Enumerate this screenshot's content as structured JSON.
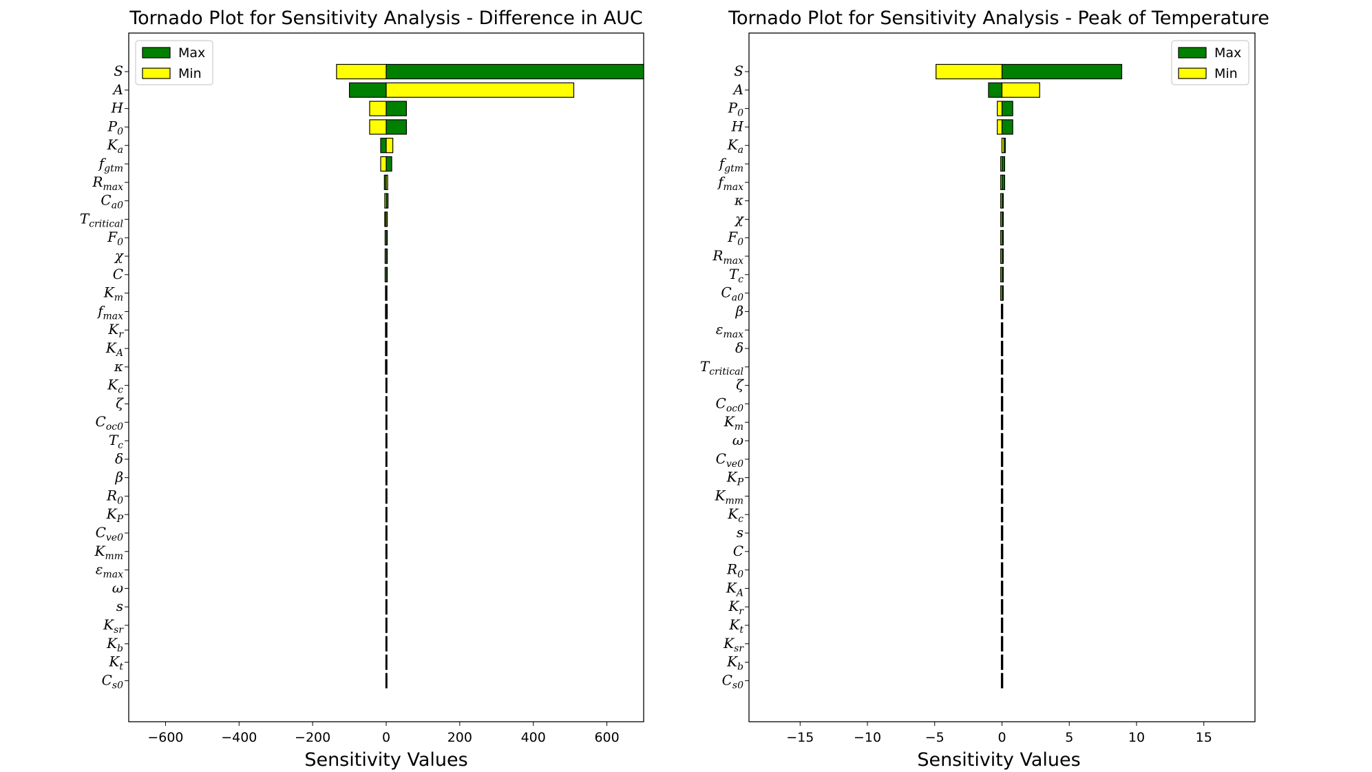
{
  "colors": {
    "max": "#008000",
    "min": "#ffff00",
    "edge": "#000000"
  },
  "chart_data": [
    {
      "type": "bar",
      "orientation": "horizontal",
      "title": "Tornado Plot for Sensitivity Analysis - Difference in AUC",
      "xlabel": "Sensitivity Values",
      "ylabel": "",
      "xlim": [
        -700,
        700
      ],
      "xticks": [
        -600,
        -400,
        -200,
        0,
        200,
        400,
        600
      ],
      "xtick_labels": [
        "−600",
        "−400",
        "−200",
        "0",
        "200",
        "400",
        "600"
      ],
      "legend": {
        "position": "top-left",
        "entries": [
          "Max",
          "Min"
        ]
      },
      "categories": [
        {
          "base": "S",
          "sub": ""
        },
        {
          "base": "A",
          "sub": ""
        },
        {
          "base": "H",
          "sub": ""
        },
        {
          "base": "P",
          "sub": "0"
        },
        {
          "base": "K",
          "sub": "a"
        },
        {
          "base": "f",
          "sub": "gtm"
        },
        {
          "base": "R",
          "sub": "max"
        },
        {
          "base": "C",
          "sub": "a0"
        },
        {
          "base": "T",
          "sub": "critical"
        },
        {
          "base": "F",
          "sub": "0"
        },
        {
          "base": "χ",
          "sub": ""
        },
        {
          "base": "C",
          "sub": ""
        },
        {
          "base": "K",
          "sub": "m"
        },
        {
          "base": "f",
          "sub": "max"
        },
        {
          "base": "K",
          "sub": "r"
        },
        {
          "base": "K",
          "sub": "A"
        },
        {
          "base": "κ",
          "sub": ""
        },
        {
          "base": "K",
          "sub": "c"
        },
        {
          "base": "ζ",
          "sub": ""
        },
        {
          "base": "C",
          "sub": "oc0"
        },
        {
          "base": "T",
          "sub": "c"
        },
        {
          "base": "δ",
          "sub": ""
        },
        {
          "base": "β",
          "sub": ""
        },
        {
          "base": "R",
          "sub": "0"
        },
        {
          "base": "K",
          "sub": "P"
        },
        {
          "base": "C",
          "sub": "ve0"
        },
        {
          "base": "K",
          "sub": "mm"
        },
        {
          "base": "ε",
          "sub": "max"
        },
        {
          "base": "ω",
          "sub": ""
        },
        {
          "base": "s",
          "sub": ""
        },
        {
          "base": "K",
          "sub": "sr"
        },
        {
          "base": "K",
          "sub": "b"
        },
        {
          "base": "K",
          "sub": "t"
        },
        {
          "base": "C",
          "sub": "s0"
        }
      ],
      "series": [
        {
          "name": "Max",
          "values": [
            700,
            -100,
            55,
            55,
            -15,
            15,
            -5,
            5,
            -4,
            3,
            3,
            3,
            -2,
            3,
            -2,
            -2,
            2,
            1,
            1,
            1,
            1,
            1,
            1,
            1,
            1,
            1,
            1,
            1,
            1,
            1,
            1,
            1,
            1,
            1
          ]
        },
        {
          "name": "Min",
          "values": [
            -135,
            510,
            -45,
            -45,
            18,
            -15,
            4,
            -4,
            3,
            -3,
            -3,
            -3,
            2,
            -2,
            2,
            2,
            -2,
            -1,
            -1,
            -1,
            -1,
            -1,
            -1,
            -1,
            -1,
            -1,
            -1,
            -1,
            -1,
            -1,
            -1,
            -1,
            -1,
            -1
          ]
        }
      ]
    },
    {
      "type": "bar",
      "orientation": "horizontal",
      "title": "Tornado Plot for Sensitivity Analysis - Peak of Temperature",
      "xlabel": "Sensitivity Values",
      "ylabel": "",
      "xlim": [
        -18.8,
        18.8
      ],
      "xticks": [
        -15,
        -10,
        -5,
        0,
        5,
        10,
        15
      ],
      "xtick_labels": [
        "−15",
        "−10",
        "−5",
        "0",
        "5",
        "10",
        "15"
      ],
      "legend": {
        "position": "top-right",
        "entries": [
          "Max",
          "Min"
        ]
      },
      "categories": [
        {
          "base": "S",
          "sub": ""
        },
        {
          "base": "A",
          "sub": ""
        },
        {
          "base": "P",
          "sub": "0"
        },
        {
          "base": "H",
          "sub": ""
        },
        {
          "base": "K",
          "sub": "a"
        },
        {
          "base": "f",
          "sub": "gtm"
        },
        {
          "base": "f",
          "sub": "max"
        },
        {
          "base": "κ",
          "sub": ""
        },
        {
          "base": "χ",
          "sub": ""
        },
        {
          "base": "F",
          "sub": "0"
        },
        {
          "base": "R",
          "sub": "max"
        },
        {
          "base": "T",
          "sub": "c"
        },
        {
          "base": "C",
          "sub": "a0"
        },
        {
          "base": "β",
          "sub": ""
        },
        {
          "base": "ε",
          "sub": "max"
        },
        {
          "base": "δ",
          "sub": ""
        },
        {
          "base": "T",
          "sub": "critical"
        },
        {
          "base": "ζ",
          "sub": ""
        },
        {
          "base": "C",
          "sub": "oc0"
        },
        {
          "base": "K",
          "sub": "m"
        },
        {
          "base": "ω",
          "sub": ""
        },
        {
          "base": "C",
          "sub": "ve0"
        },
        {
          "base": "K",
          "sub": "P"
        },
        {
          "base": "K",
          "sub": "mm"
        },
        {
          "base": "K",
          "sub": "c"
        },
        {
          "base": "s",
          "sub": ""
        },
        {
          "base": "C",
          "sub": ""
        },
        {
          "base": "R",
          "sub": "0"
        },
        {
          "base": "K",
          "sub": "A"
        },
        {
          "base": "K",
          "sub": "r"
        },
        {
          "base": "K",
          "sub": "t"
        },
        {
          "base": "K",
          "sub": "sr"
        },
        {
          "base": "K",
          "sub": "b"
        },
        {
          "base": "C",
          "sub": "s0"
        }
      ],
      "series": [
        {
          "name": "Max",
          "values": [
            8.9,
            -1.0,
            0.8,
            0.8,
            0.25,
            0.2,
            0.2,
            0.1,
            0.1,
            0.1,
            0.1,
            0.1,
            0.1,
            0.05,
            0.05,
            0.05,
            0.05,
            0.05,
            0.05,
            0.05,
            0.05,
            0.05,
            0.05,
            0.05,
            0.05,
            0.05,
            0.05,
            0.05,
            0.05,
            0.05,
            0.05,
            0.05,
            0.05,
            0.05
          ]
        },
        {
          "name": "Min",
          "values": [
            -4.9,
            2.8,
            -0.35,
            -0.35,
            0.15,
            -0.1,
            -0.1,
            -0.1,
            -0.1,
            -0.1,
            -0.1,
            -0.1,
            -0.1,
            -0.05,
            -0.05,
            -0.05,
            -0.05,
            -0.05,
            -0.05,
            -0.05,
            -0.05,
            -0.05,
            -0.05,
            -0.05,
            -0.05,
            -0.05,
            -0.05,
            -0.05,
            -0.05,
            -0.05,
            -0.05,
            -0.05,
            -0.05,
            -0.05
          ]
        }
      ]
    }
  ]
}
